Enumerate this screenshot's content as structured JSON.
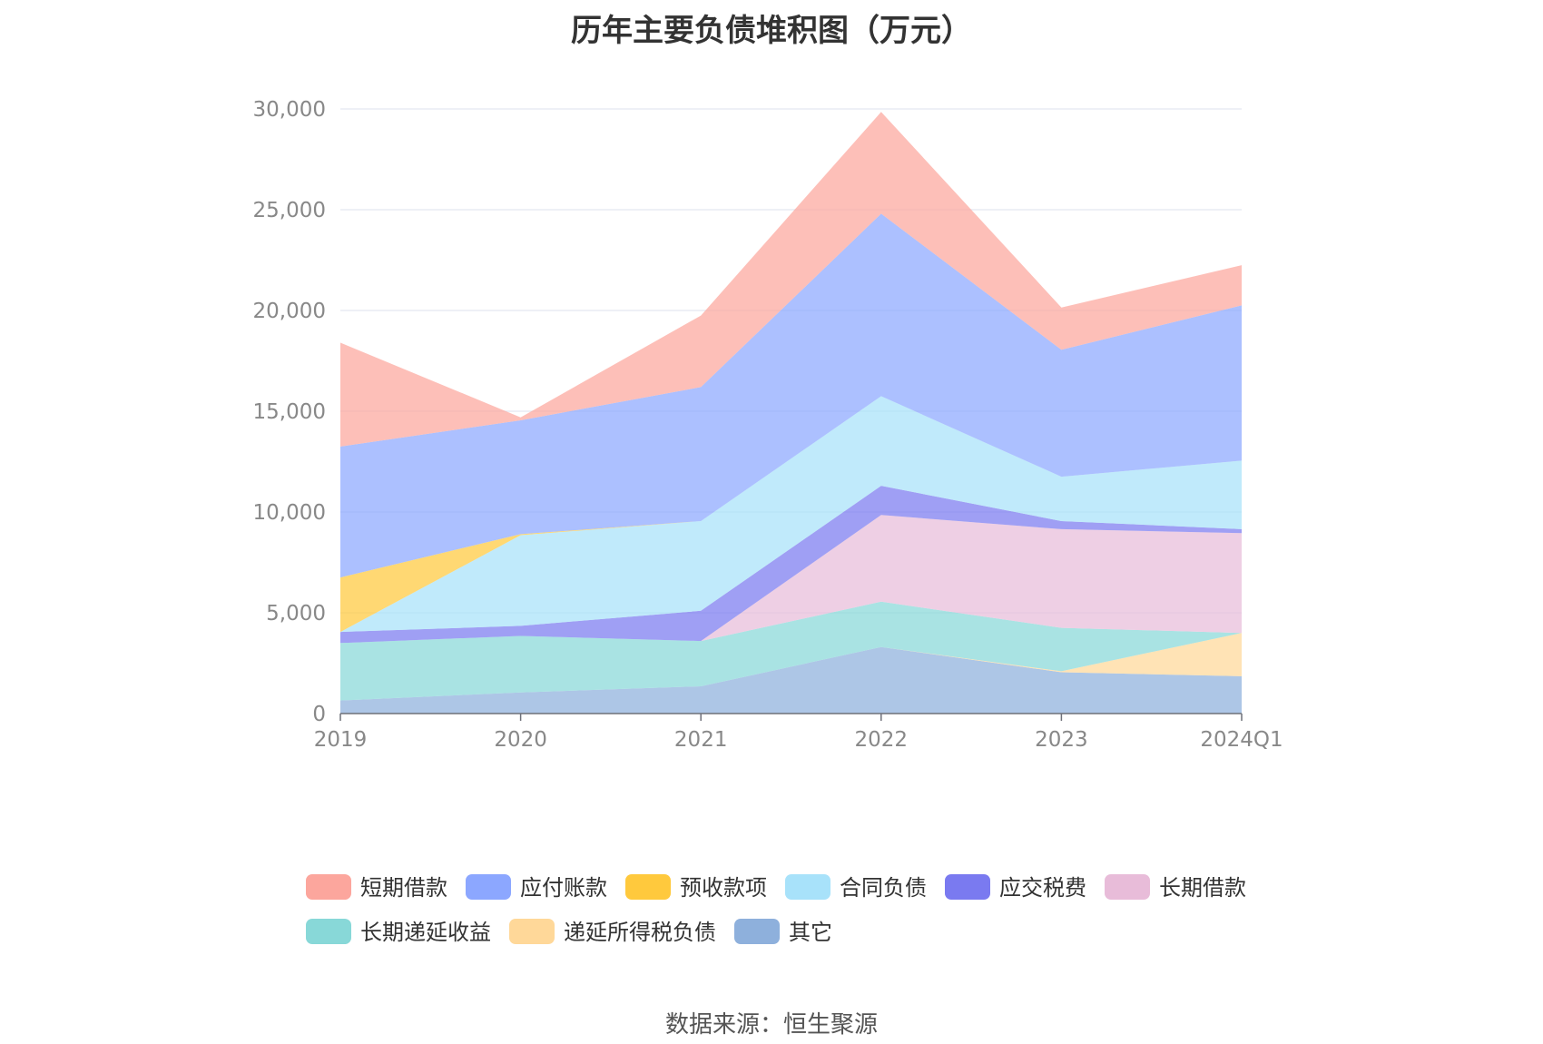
{
  "chart_data": {
    "type": "area",
    "stacked": true,
    "title": "历年主要负债堆积图（万元）",
    "xlabel": "",
    "ylabel": "",
    "categories": [
      "2019",
      "2020",
      "2021",
      "2022",
      "2023",
      "2024Q1"
    ],
    "ylim": [
      0,
      30000
    ],
    "yticks": [
      0,
      5000,
      10000,
      15000,
      20000,
      25000,
      30000
    ],
    "ytick_labels": [
      "0",
      "5,000",
      "10,000",
      "15,000",
      "20,000",
      "25,000",
      "30,000"
    ],
    "grid": true,
    "legend_position": "bottom",
    "series": [
      {
        "name": "其它",
        "color": "#8eb0dc",
        "values": [
          650,
          1050,
          1350,
          3300,
          2050,
          1850
        ]
      },
      {
        "name": "递延所得税负债",
        "color": "#ffd899",
        "values": [
          0,
          0,
          0,
          0,
          50,
          2150
        ]
      },
      {
        "name": "长期递延收益",
        "color": "#88d8d8",
        "values": [
          2850,
          2800,
          2250,
          2250,
          2150,
          0
        ]
      },
      {
        "name": "长期借款",
        "color": "#e8bcd9",
        "values": [
          0,
          0,
          0,
          4300,
          4900,
          4950
        ]
      },
      {
        "name": "应交税费",
        "color": "#7a7af0",
        "values": [
          550,
          500,
          1500,
          1450,
          400,
          200
        ]
      },
      {
        "name": "合同负债",
        "color": "#a8e2fa",
        "values": [
          0,
          4500,
          4450,
          4450,
          2200,
          3400
        ]
      },
      {
        "name": "预收款项",
        "color": "#ffc93d",
        "values": [
          2700,
          50,
          0,
          0,
          0,
          0
        ]
      },
      {
        "name": "应付账款",
        "color": "#8ca7ff",
        "values": [
          6500,
          5650,
          6650,
          9050,
          6300,
          7700
        ]
      },
      {
        "name": "短期借款",
        "color": "#fca69d",
        "values": [
          5150,
          150,
          3550,
          5050,
          2100,
          2000
        ]
      }
    ],
    "legend_order": [
      "短期借款",
      "应付账款",
      "预收款项",
      "合同负债",
      "应交税费",
      "长期借款",
      "长期递延收益",
      "递延所得税负债",
      "其它"
    ]
  },
  "source_text": "数据来源：恒生聚源"
}
